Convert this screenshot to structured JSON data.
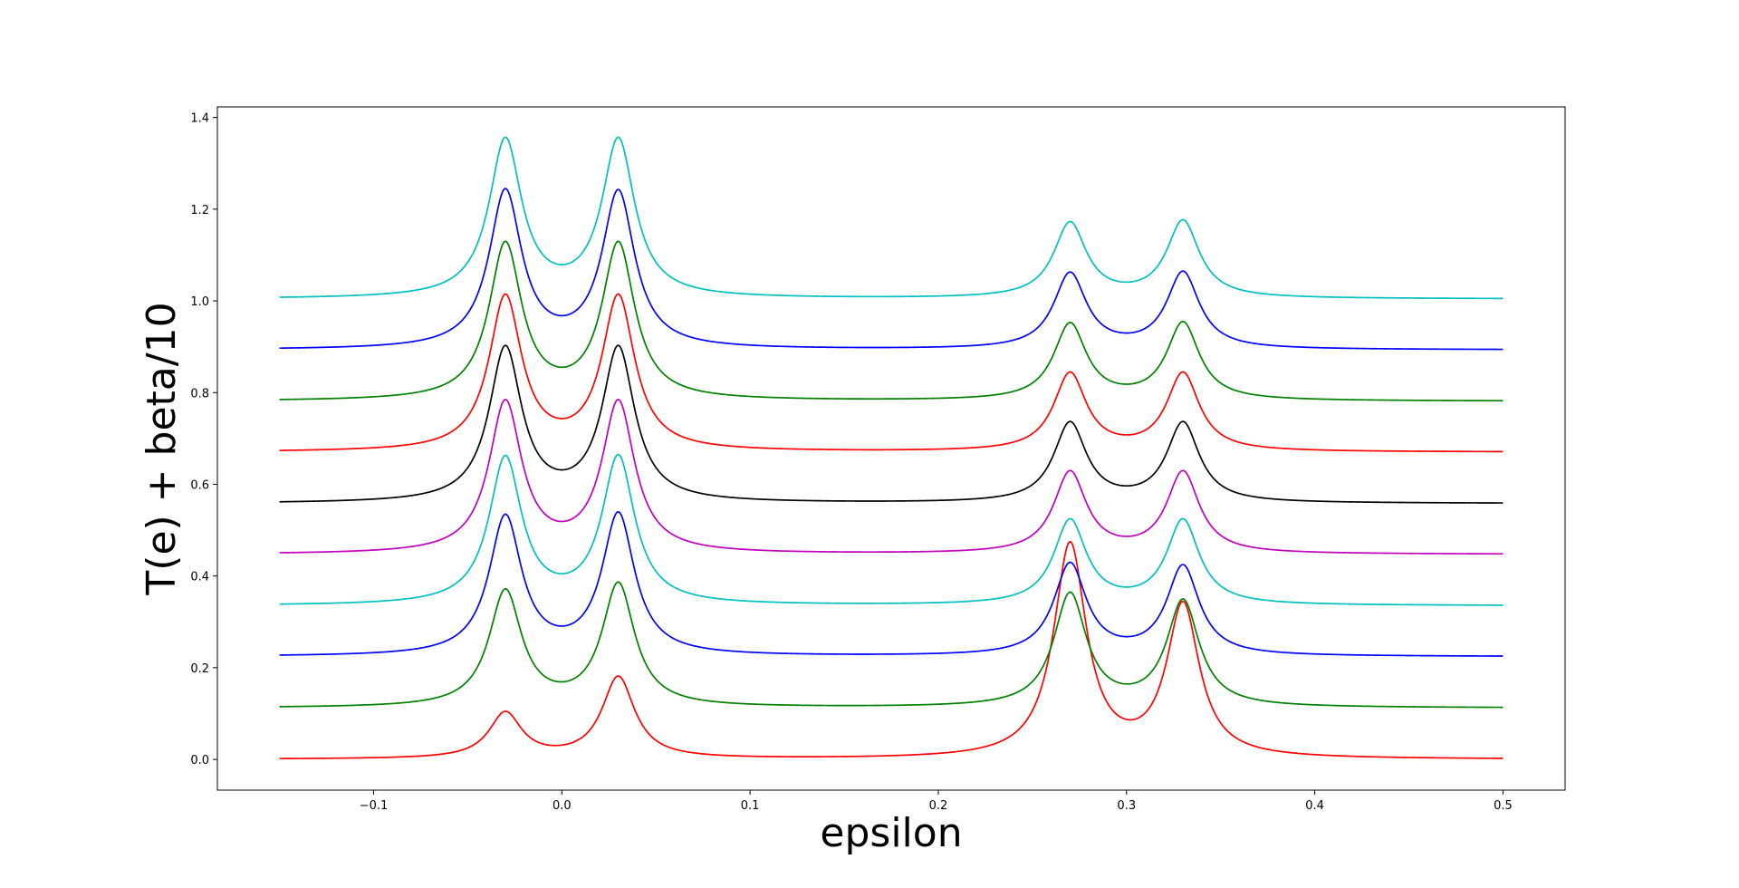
{
  "chart_data": {
    "type": "line",
    "xlabel": "epsilon",
    "ylabel": "T(e) + beta/10",
    "xlim": [
      -0.183,
      0.533
    ],
    "ylim": [
      -0.067,
      1.423
    ],
    "x_ticks": [
      -0.1,
      0.0,
      0.1,
      0.2,
      0.3,
      0.4,
      0.5
    ],
    "x_tick_labels": [
      "−0.1",
      "0.0",
      "0.1",
      "0.2",
      "0.3",
      "0.4",
      "0.5"
    ],
    "y_ticks": [
      0.0,
      0.2,
      0.4,
      0.6,
      0.8,
      1.0,
      1.2,
      1.4
    ],
    "y_tick_labels": [
      "0.0",
      "0.2",
      "0.4",
      "0.6",
      "0.8",
      "1.0",
      "1.2",
      "1.4"
    ],
    "grid": false,
    "x_range": [
      -0.15,
      0.5
    ],
    "peak_centers": [
      -0.03,
      0.03,
      0.27,
      0.33
    ],
    "series": [
      {
        "color": "#ff0000",
        "baseline": 0.0,
        "peaks": [
          0.105,
          0.182,
          0.475,
          0.345
        ]
      },
      {
        "color": "#008000",
        "baseline": 0.112,
        "peaks": [
          0.372,
          0.387,
          0.365,
          0.35
        ]
      },
      {
        "color": "#0000ff",
        "baseline": 0.224,
        "peaks": [
          0.535,
          0.54,
          0.43,
          0.425
        ]
      },
      {
        "color": "#00bfbf",
        "baseline": 0.335,
        "peaks": [
          0.663,
          0.665,
          0.525,
          0.525
        ]
      },
      {
        "color": "#bf00bf",
        "baseline": 0.447,
        "peaks": [
          0.785,
          0.785,
          0.63,
          0.63
        ]
      },
      {
        "color": "#000000",
        "baseline": 0.558,
        "peaks": [
          0.903,
          0.903,
          0.737,
          0.737
        ]
      },
      {
        "color": "#ff0000",
        "baseline": 0.67,
        "peaks": [
          1.015,
          1.015,
          0.845,
          0.845
        ]
      },
      {
        "color": "#008000",
        "baseline": 0.781,
        "peaks": [
          1.13,
          1.13,
          0.953,
          0.955
        ]
      },
      {
        "color": "#0000ff",
        "baseline": 0.893,
        "peaks": [
          1.245,
          1.243,
          1.063,
          1.065
        ]
      },
      {
        "color": "#00bfbf",
        "baseline": 1.004,
        "peaks": [
          1.357,
          1.357,
          1.173,
          1.177
        ]
      }
    ]
  }
}
